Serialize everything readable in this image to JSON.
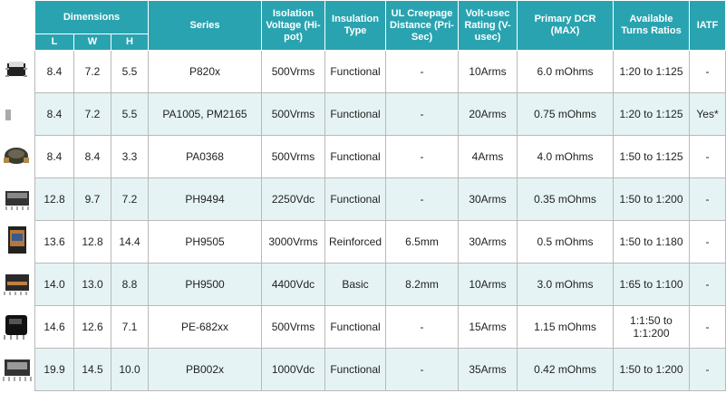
{
  "header": {
    "dimensions": "Dimensions",
    "dims": [
      "L",
      "W",
      "H"
    ],
    "columns": [
      "Series",
      "Isolation Voltage (Hi-pot)",
      "Insulation Type",
      "UL Creepage Distance (Pri-Sec)",
      "Volt-usec Rating (V-usec)",
      "Primary DCR (MAX)",
      "Available Turns Ratios",
      "IATF"
    ]
  },
  "table": {
    "rows": [
      [
        "8.4",
        "7.2",
        "5.5",
        "P820x",
        "500Vrms",
        "Functional",
        "-",
        "10Arms",
        "6.0 mOhms",
        "1:20 to 1:125",
        "-"
      ],
      [
        "8.4",
        "7.2",
        "5.5",
        "PA1005, PM2165",
        "500Vrms",
        "Functional",
        "-",
        "20Arms",
        "0.75 mOhms",
        "1:20 to 1:125",
        "Yes*"
      ],
      [
        "8.4",
        "8.4",
        "3.3",
        "PA0368",
        "500Vrms",
        "Functional",
        "-",
        "4Arms",
        "4.0 mOhms",
        "1:50 to 1:125",
        "-"
      ],
      [
        "12.8",
        "9.7",
        "7.2",
        "PH9494",
        "2250Vdc",
        "Functional",
        "-",
        "30Arms",
        "0.35 mOhms",
        "1:50 to 1:200",
        "-"
      ],
      [
        "13.6",
        "12.8",
        "14.4",
        "PH9505",
        "3000Vrms",
        "Reinforced",
        "6.5mm",
        "30Arms",
        "0.5 mOhms",
        "1:50 to 1:180",
        "-"
      ],
      [
        "14.0",
        "13.0",
        "8.8",
        "PH9500",
        "4400Vdc",
        "Basic",
        "8.2mm",
        "10Arms",
        "3.0 mOhms",
        "1:65 to 1:100",
        "-"
      ],
      [
        "14.6",
        "12.6",
        "7.1",
        "PE-682xx",
        "500Vrms",
        "Functional",
        "-",
        "15Arms",
        "1.15 mOhms",
        "1:1:50 to 1:1:200",
        "-"
      ],
      [
        "19.9",
        "14.5",
        "10.0",
        "PB002x",
        "1000Vdc",
        "Functional",
        "-",
        "35Arms",
        "0.42 mOhms",
        "1:50 to 1:200",
        "-"
      ]
    ]
  }
}
